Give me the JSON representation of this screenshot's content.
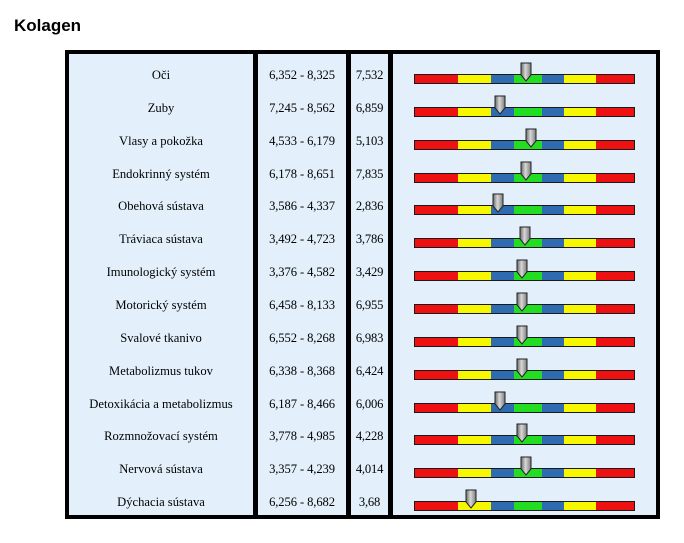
{
  "page": {
    "title": "Kolagen"
  },
  "rows": [
    {
      "name": "Oči",
      "range": "6,352 - 8,325",
      "value": "7,532",
      "level": 0.505
    },
    {
      "name": "Zuby",
      "range": "7,245 - 8,562",
      "value": "6,859",
      "level": 0.388
    },
    {
      "name": "Vlasy a pokožka",
      "range": "4,533 - 6,179",
      "value": "5,103",
      "level": 0.53
    },
    {
      "name": "Endokrinný systém",
      "range": "6,178 - 8,651",
      "value": "7,835",
      "level": 0.505
    },
    {
      "name": "Obehová sústava",
      "range": "3,586 - 4,337",
      "value": "2,836",
      "level": 0.38
    },
    {
      "name": "Tráviaca sústava",
      "range": "3,492 - 4,723",
      "value": "3,786",
      "level": 0.5
    },
    {
      "name": "Imunologický systém",
      "range": "3,376 - 4,582",
      "value": "3,429",
      "level": 0.49
    },
    {
      "name": "Motorický systém",
      "range": "6,458 - 8,133",
      "value": "6,955",
      "level": 0.49
    },
    {
      "name": "Svalové tkanivo",
      "range": "6,552 - 8,268",
      "value": "6,983",
      "level": 0.49
    },
    {
      "name": "Metabolizmus tukov",
      "range": "6,338 - 8,368",
      "value": "6,424",
      "level": 0.49
    },
    {
      "name": "Detoxikácia a metabolizmus",
      "range": "6,187 - 8,466",
      "value": "6,006",
      "level": 0.39
    },
    {
      "name": "Rozmnožovací systém",
      "range": "3,778 - 4,985",
      "value": "4,228",
      "level": 0.49
    },
    {
      "name": "Nervová sústava",
      "range": "3,357 - 4,239",
      "value": "4,014",
      "level": 0.505
    },
    {
      "name": "Dýchacia sústava",
      "range": "6,256 - 8,682",
      "value": "3,68",
      "level": 0.26
    }
  ]
}
